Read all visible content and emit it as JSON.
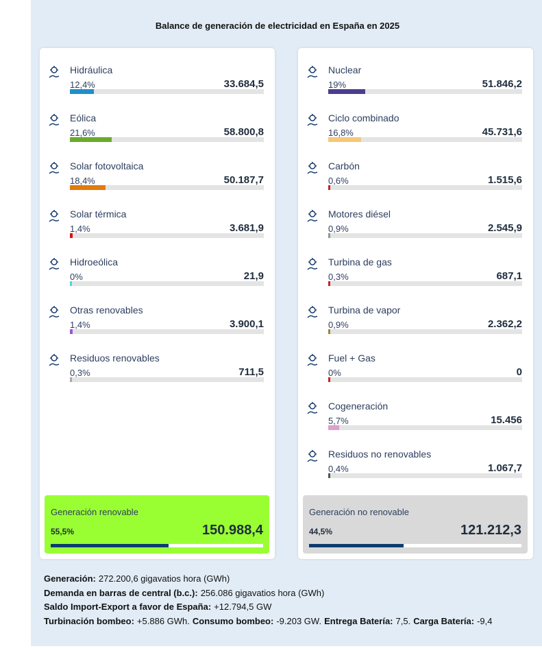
{
  "title": "Balance de generación de electricidad en España en 2025",
  "panels": [
    {
      "items": [
        {
          "name": "Hidráulica",
          "percent": 12.4,
          "percent_label": "12,4%",
          "value": "33.684,5",
          "color": "#1e8fc8"
        },
        {
          "name": "Eólica",
          "percent": 21.6,
          "percent_label": "21,6%",
          "value": "58.800,8",
          "color": "#6aab2e"
        },
        {
          "name": "Solar fotovoltaica",
          "percent": 18.4,
          "percent_label": "18,4%",
          "value": "50.187,7",
          "color": "#e07b0c"
        },
        {
          "name": "Solar térmica",
          "percent": 1.4,
          "percent_label": "1,4%",
          "value": "3.681,9",
          "color": "#e0100f"
        },
        {
          "name": "Hidroeólica",
          "percent": 0,
          "percent_label": "0%",
          "value": "21,9",
          "color": "#4fd6e0"
        },
        {
          "name": "Otras renovables",
          "percent": 1.4,
          "percent_label": "1,4%",
          "value": "3.900,1",
          "color": "#9b59c9"
        },
        {
          "name": "Residuos renovables",
          "percent": 0.3,
          "percent_label": "0,3%",
          "value": "711,5",
          "color": "#aaaaaa"
        }
      ],
      "summary": {
        "name": "Generación renovable",
        "percent": 55.5,
        "percent_label": "55,5%",
        "value": "150.988,4",
        "color": "#99ff33"
      }
    },
    {
      "items": [
        {
          "name": "Nuclear",
          "percent": 19,
          "percent_label": "19%",
          "value": "51.846,2",
          "color": "#4b3e8f"
        },
        {
          "name": "Ciclo combinado",
          "percent": 16.8,
          "percent_label": "16,8%",
          "value": "45.731,6",
          "color": "#f5c87a"
        },
        {
          "name": "Carbón",
          "percent": 0.6,
          "percent_label": "0,6%",
          "value": "1.515,6",
          "color": "#c0281e"
        },
        {
          "name": "Motores diésel",
          "percent": 0.9,
          "percent_label": "0,9%",
          "value": "2.545,9",
          "color": "#8b9c8b"
        },
        {
          "name": "Turbina de gas",
          "percent": 0.3,
          "percent_label": "0,3%",
          "value": "687,1",
          "color": "#c8281e"
        },
        {
          "name": "Turbina de vapor",
          "percent": 0.9,
          "percent_label": "0,9%",
          "value": "2.362,2",
          "color": "#a08a2a"
        },
        {
          "name": "Fuel + Gas",
          "percent": 0,
          "percent_label": "0%",
          "value": "0",
          "color": "#c8281e"
        },
        {
          "name": "Cogeneración",
          "percent": 5.7,
          "percent_label": "5,7%",
          "value": "15.456",
          "color": "#d9a0d0"
        },
        {
          "name": "Residuos no renovables",
          "percent": 0.4,
          "percent_label": "0,4%",
          "value": "1.067,7",
          "color": "#555555"
        }
      ],
      "summary": {
        "name": "Generación no renovable",
        "percent": 44.5,
        "percent_label": "44,5%",
        "value": "121.212,3",
        "color": "#d9d9d9"
      }
    }
  ],
  "footer": [
    [
      {
        "label": "Generación:",
        "text": "272.200,6 gigavatios hora (GWh)"
      }
    ],
    [
      {
        "label": "Demanda en barras de central (b.c.):",
        "text": "256.086 gigavatios hora (GWh)"
      }
    ],
    [
      {
        "label": "Saldo Import-Export a favor de España:",
        "text": "+12.794,5 GW"
      }
    ],
    [
      {
        "label": "Turbinación bombeo:",
        "text": "+5.886 GWh."
      },
      {
        "label": "Consumo bombeo:",
        "text": "-9.203 GW."
      },
      {
        "label": "Entrega Batería:",
        "text": "7,5."
      },
      {
        "label": "Carga Batería:",
        "text": "-9,4"
      }
    ]
  ]
}
